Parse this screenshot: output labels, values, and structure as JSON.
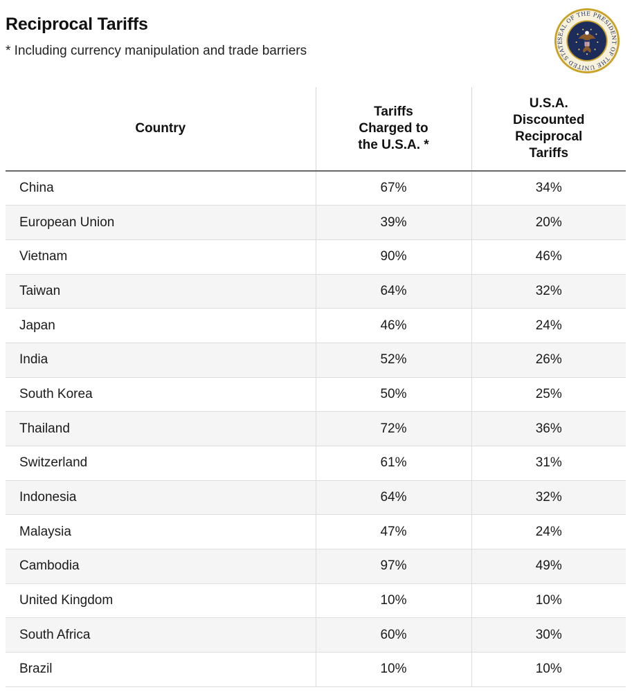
{
  "header": {
    "title": "Reciprocal Tariffs",
    "subtitle": "* Including currency manipulation and trade barriers"
  },
  "seal": {
    "icon": "presidential-seal-icon",
    "text": "SEAL OF THE PRESIDENT OF THE UNITED STATES"
  },
  "table": {
    "columns": {
      "country": "Country",
      "charged": [
        "Tariffs",
        "Charged to",
        "the U.S.A. *"
      ],
      "discounted": [
        "U.S.A.",
        "Discounted",
        "Reciprocal",
        "Tariffs"
      ]
    },
    "rows": [
      {
        "country": "China",
        "charged": "67%",
        "discounted": "34%"
      },
      {
        "country": "European Union",
        "charged": "39%",
        "discounted": "20%"
      },
      {
        "country": "Vietnam",
        "charged": "90%",
        "discounted": "46%"
      },
      {
        "country": "Taiwan",
        "charged": "64%",
        "discounted": "32%"
      },
      {
        "country": "Japan",
        "charged": "46%",
        "discounted": "24%"
      },
      {
        "country": "India",
        "charged": "52%",
        "discounted": "26%"
      },
      {
        "country": "South Korea",
        "charged": "50%",
        "discounted": "25%"
      },
      {
        "country": "Thailand",
        "charged": "72%",
        "discounted": "36%"
      },
      {
        "country": "Switzerland",
        "charged": "61%",
        "discounted": "31%"
      },
      {
        "country": "Indonesia",
        "charged": "64%",
        "discounted": "32%"
      },
      {
        "country": "Malaysia",
        "charged": "47%",
        "discounted": "24%"
      },
      {
        "country": "Cambodia",
        "charged": "97%",
        "discounted": "49%"
      },
      {
        "country": "United Kingdom",
        "charged": "10%",
        "discounted": "10%"
      },
      {
        "country": "South Africa",
        "charged": "60%",
        "discounted": "30%"
      },
      {
        "country": "Brazil",
        "charged": "10%",
        "discounted": "10%"
      }
    ]
  }
}
